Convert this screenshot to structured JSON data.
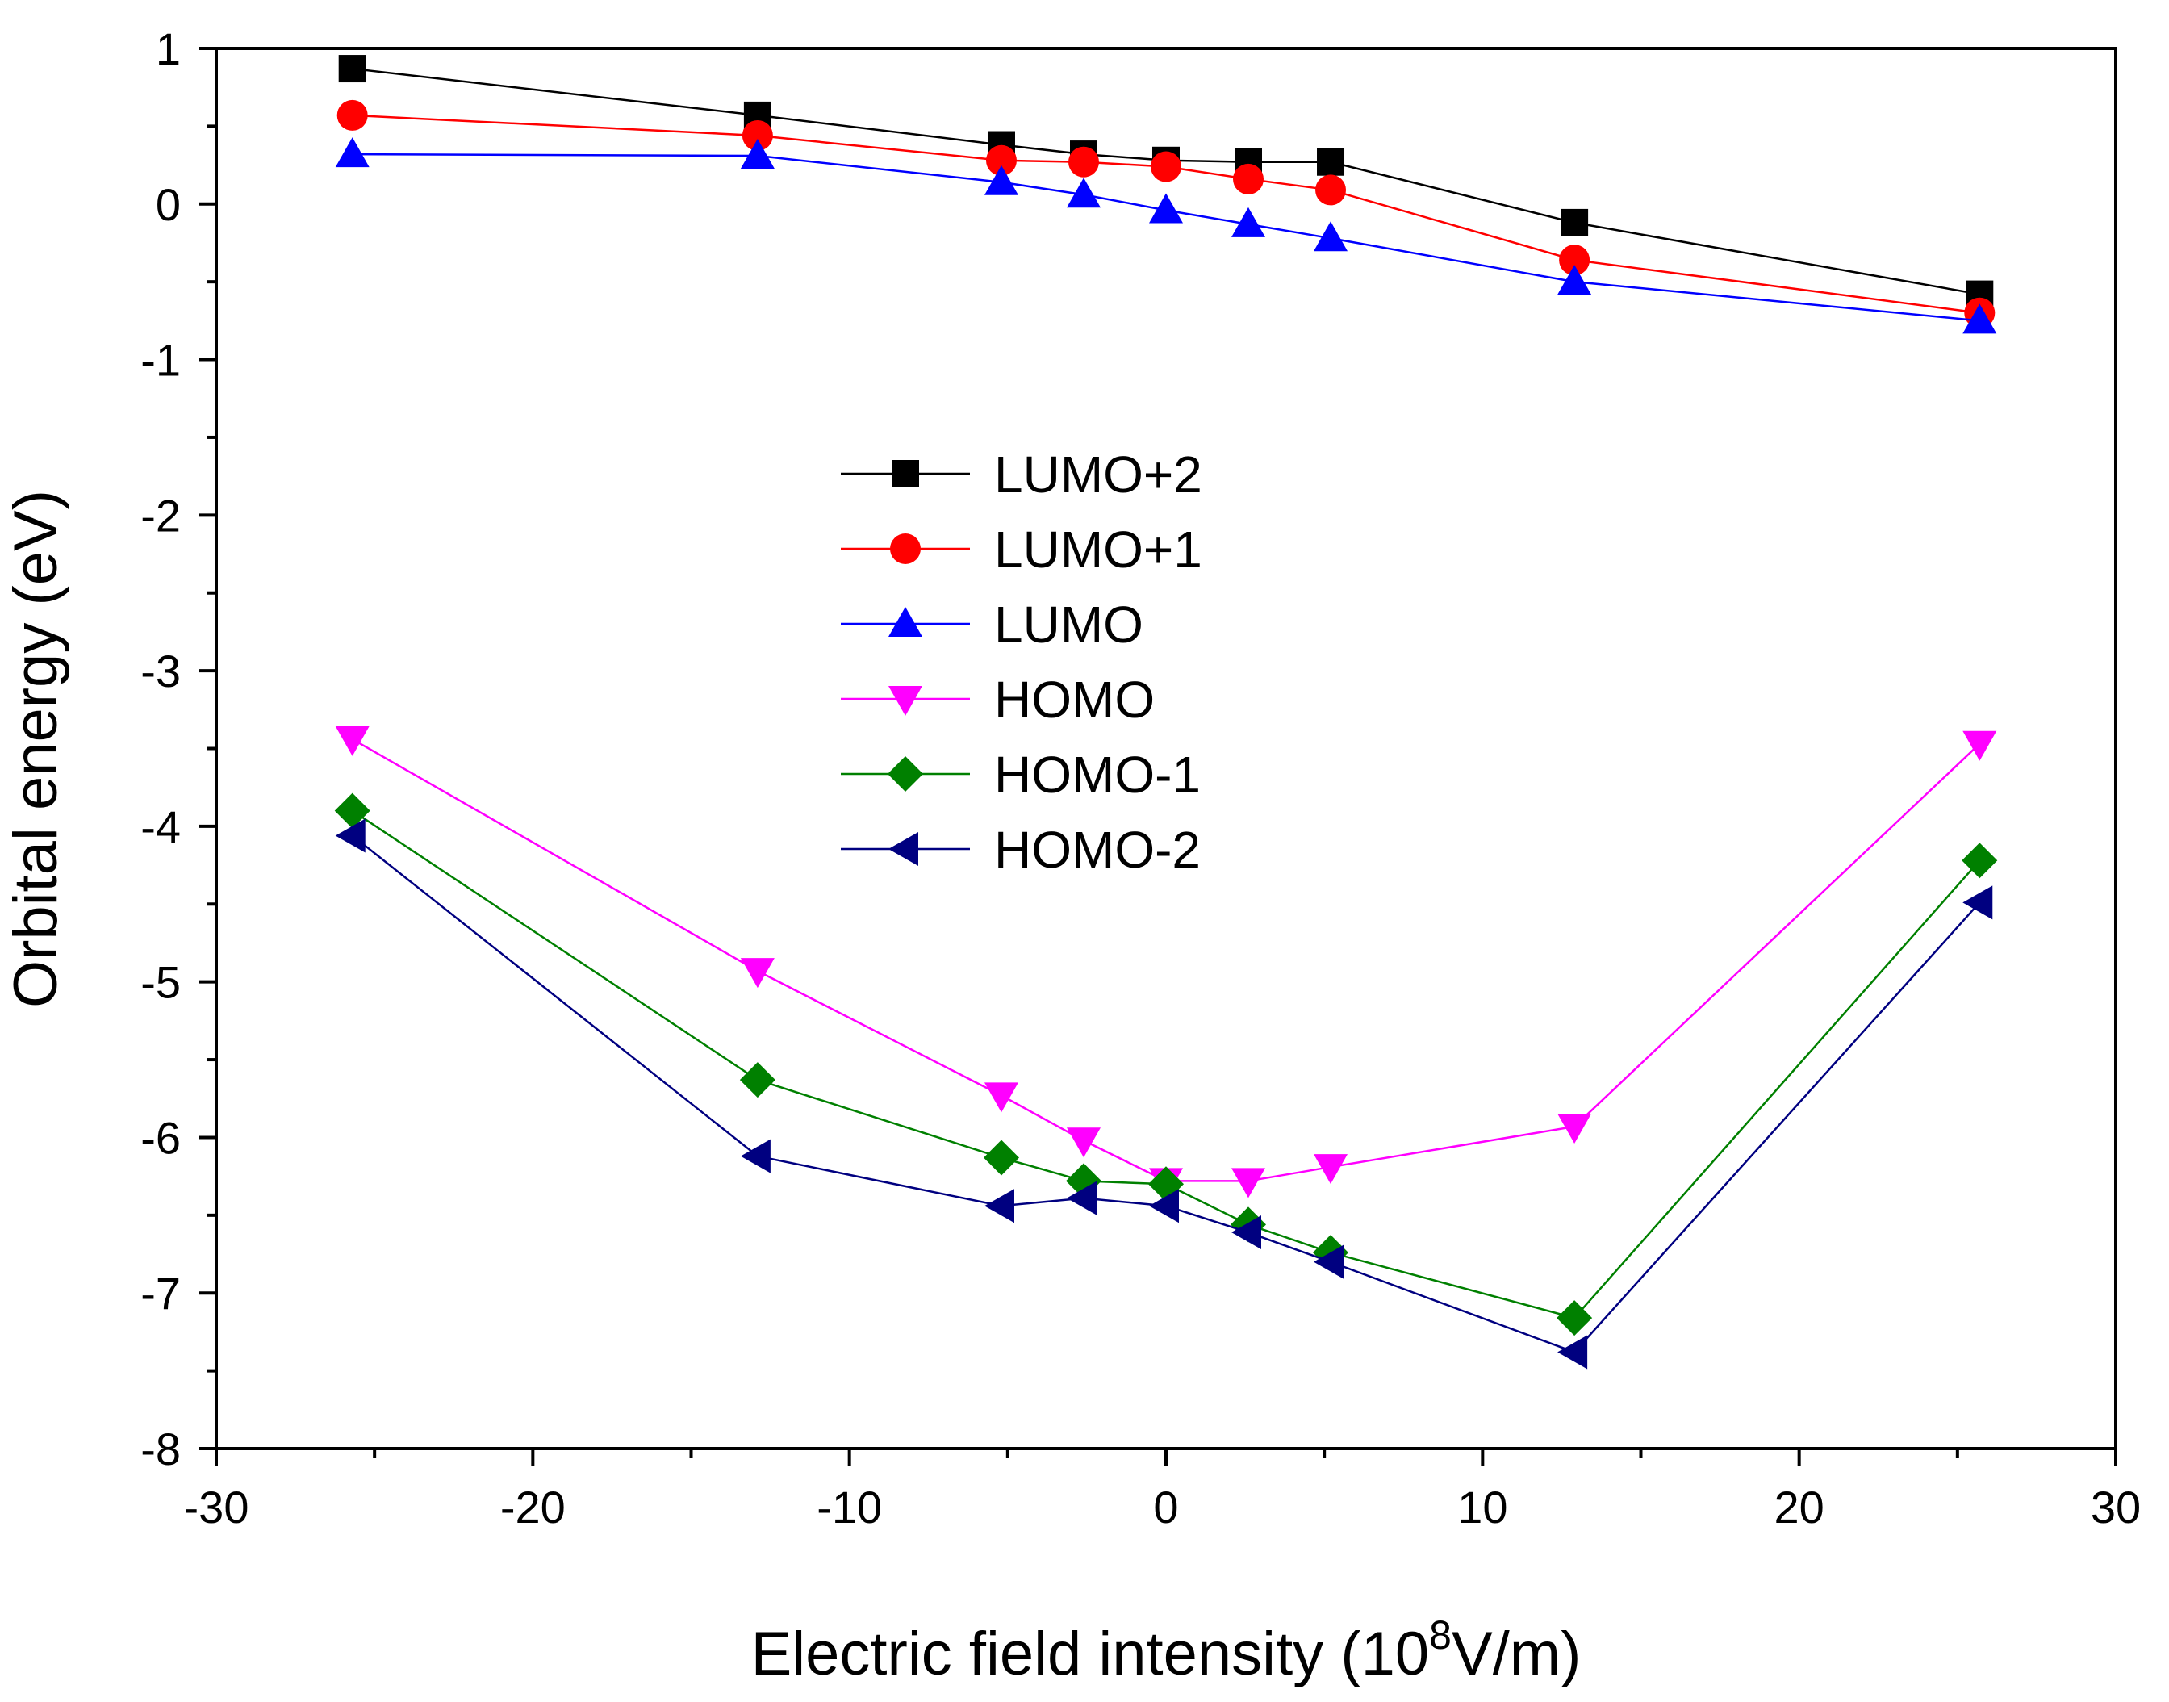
{
  "chart_data": {
    "type": "line",
    "title": "",
    "xlabel": "Electric field intensity (10",
    "xlabel_sup": "8",
    "xlabel_tail": "V/m)",
    "ylabel": "Orbital energy (eV)",
    "xlim": [
      -30,
      30
    ],
    "ylim": [
      -8,
      1
    ],
    "x_ticks": [
      "-30",
      "-20",
      "-10",
      "0",
      "10",
      "20",
      "30"
    ],
    "y_ticks": [
      "1",
      "0",
      "-1",
      "-2",
      "-3",
      "-4",
      "-5",
      "-6",
      "-7",
      "-8"
    ],
    "x": [
      -25.7,
      -12.9,
      -5.2,
      -2.6,
      0,
      2.6,
      5.2,
      12.9,
      25.7
    ],
    "legend_position": "center",
    "series": [
      {
        "name": "LUMO+2",
        "color": "#000000",
        "marker": "square",
        "values": [
          0.87,
          0.57,
          0.38,
          0.32,
          0.28,
          0.27,
          0.27,
          -0.12,
          -0.58
        ]
      },
      {
        "name": "LUMO+1",
        "color": "#ff0000",
        "marker": "circle",
        "values": [
          0.57,
          0.44,
          0.28,
          0.27,
          0.24,
          0.16,
          0.09,
          -0.36,
          -0.7
        ]
      },
      {
        "name": "LUMO",
        "color": "#0000ff",
        "marker": "triangle-up",
        "values": [
          0.32,
          0.31,
          0.14,
          0.06,
          -0.04,
          -0.13,
          -0.22,
          -0.5,
          -0.75
        ]
      },
      {
        "name": "HOMO",
        "color": "#ff00ff",
        "marker": "triangle-down",
        "values": [
          -3.44,
          -4.93,
          -5.73,
          -6.02,
          -6.28,
          -6.28,
          -6.19,
          -5.93,
          -3.47
        ]
      },
      {
        "name": "HOMO-1",
        "color": "#008000",
        "marker": "diamond",
        "values": [
          -3.9,
          -5.63,
          -6.13,
          -6.28,
          -6.3,
          -6.56,
          -6.74,
          -7.16,
          -4.22
        ]
      },
      {
        "name": "HOMO-2",
        "color": "#000080",
        "marker": "triangle-left",
        "values": [
          -4.06,
          -6.12,
          -6.44,
          -6.39,
          -6.44,
          -6.61,
          -6.8,
          -7.38,
          -4.49
        ]
      }
    ]
  }
}
